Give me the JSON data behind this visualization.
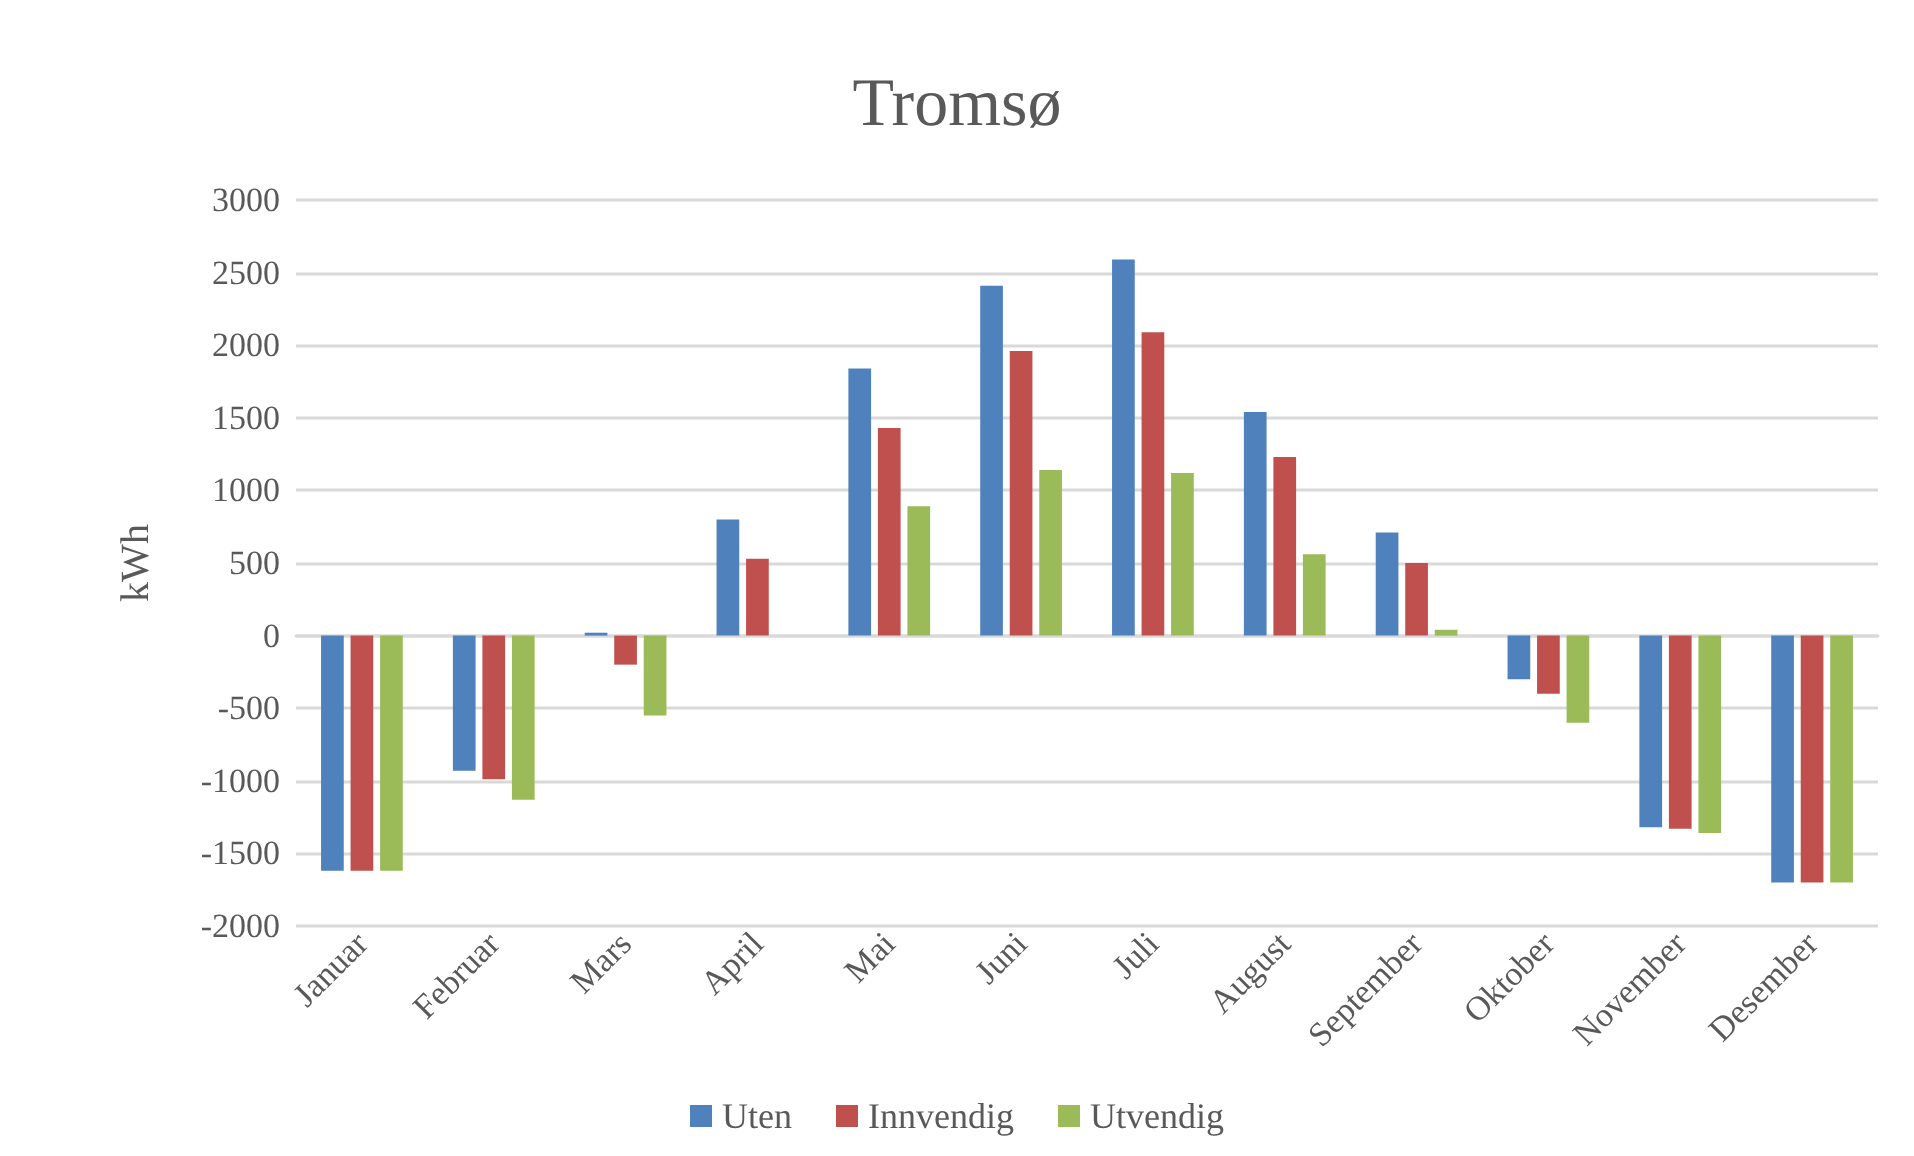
{
  "chart_data": {
    "type": "bar",
    "title": "Tromsø",
    "ylabel": "kWh",
    "categories": [
      "Januar",
      "Februar",
      "Mars",
      "April",
      "Mai",
      "Juni",
      "Juli",
      "August",
      "September",
      "Oktober",
      "November",
      "Desember"
    ],
    "series": [
      {
        "name": "Uten",
        "color": "#4f81bd",
        "values": [
          -1620,
          -930,
          20,
          800,
          1840,
          2410,
          2590,
          1540,
          710,
          -300,
          -1320,
          -1700
        ]
      },
      {
        "name": "Innvendig",
        "color": "#c0504d",
        "values": [
          -1620,
          -990,
          -200,
          530,
          1430,
          1960,
          2090,
          1230,
          500,
          -400,
          -1330,
          -1700
        ]
      },
      {
        "name": "Utvendig",
        "color": "#9bbb59",
        "values": [
          -1620,
          -1130,
          -550,
          0,
          890,
          1140,
          1120,
          560,
          40,
          -600,
          -1360,
          -1700
        ]
      }
    ],
    "ylim": [
      -2000,
      3000
    ],
    "yticks": [
      -2000,
      -1500,
      -1000,
      -500,
      0,
      500,
      1000,
      1500,
      2000,
      2500,
      3000
    ],
    "grid": "y",
    "legend": "bottom"
  }
}
